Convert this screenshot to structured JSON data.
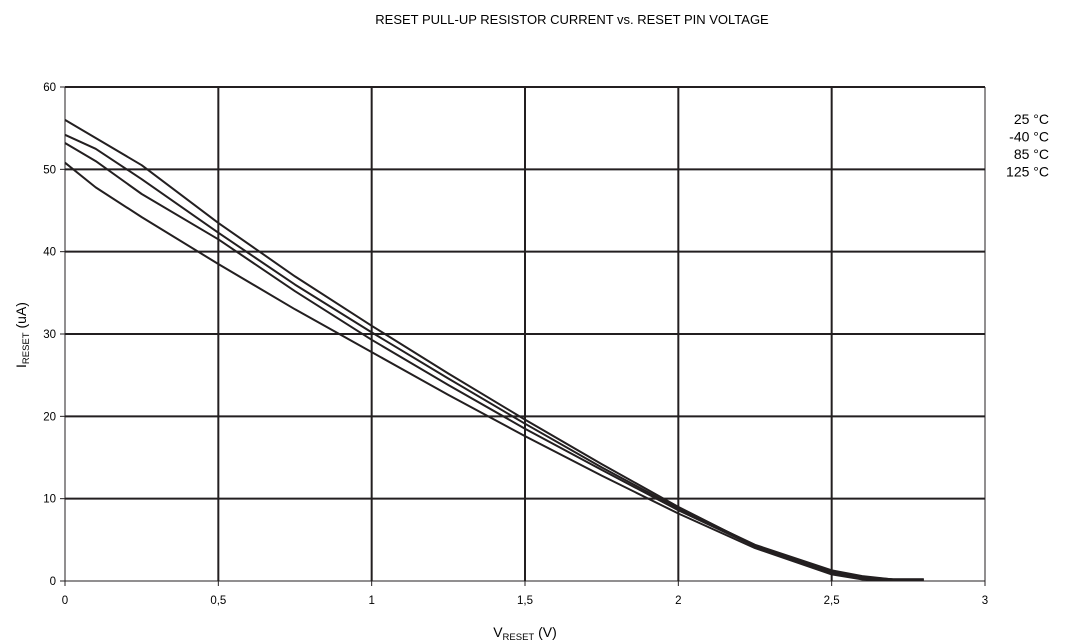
{
  "chart_data": {
    "type": "line",
    "title": "RESET PULL-UP RESISTOR CURRENT vs. RESET PIN VOLTAGE",
    "xlabel": {
      "main": "V",
      "sub": "RESET",
      "unit": " (V)"
    },
    "ylabel": {
      "main": "I",
      "sub": "RESET",
      "unit": " (uA)"
    },
    "xlim": [
      0,
      3
    ],
    "ylim": [
      0,
      60
    ],
    "x_ticks": [
      0,
      0.5,
      1,
      1.5,
      2,
      2.5,
      3
    ],
    "x_tick_labels": [
      "0",
      "0,5",
      "1",
      "1,5",
      "2",
      "2,5",
      "3"
    ],
    "y_ticks": [
      0,
      10,
      20,
      30,
      40,
      50,
      60
    ],
    "y_tick_labels": [
      "0",
      "10",
      "20",
      "30",
      "40",
      "50",
      "60"
    ],
    "grid": true,
    "legend_position": "right",
    "legend": [
      "25 °C",
      "-40 °C",
      "85 °C",
      "125 °C"
    ],
    "series": [
      {
        "name": "25 °C",
        "x": [
          0,
          0.1,
          0.25,
          0.5,
          0.75,
          1.0,
          1.25,
          1.5,
          1.75,
          2.0,
          2.25,
          2.5,
          2.6,
          2.7,
          2.8
        ],
        "y": [
          56.0,
          53.8,
          50.5,
          43.5,
          37.0,
          31.0,
          25.2,
          19.6,
          14.2,
          9.0,
          4.3,
          1.2,
          0.5,
          0.2,
          0.2
        ]
      },
      {
        "name": "-40 °C",
        "x": [
          0,
          0.1,
          0.25,
          0.5,
          0.75,
          1.0,
          1.25,
          1.5,
          1.75,
          2.0,
          2.25,
          2.5,
          2.6,
          2.7,
          2.8
        ],
        "y": [
          54.2,
          52.5,
          48.8,
          42.3,
          36.0,
          30.2,
          24.6,
          19.1,
          13.8,
          8.8,
          4.4,
          1.3,
          0.6,
          0.2,
          0.2
        ]
      },
      {
        "name": "85 °C",
        "x": [
          0,
          0.1,
          0.25,
          0.5,
          0.75,
          1.0,
          1.25,
          1.5,
          1.75,
          2.0,
          2.25,
          2.5,
          2.6,
          2.7,
          2.8
        ],
        "y": [
          53.2,
          51.0,
          47.0,
          41.5,
          35.2,
          29.3,
          23.8,
          18.5,
          13.5,
          8.6,
          4.2,
          1.0,
          0.4,
          0.2,
          0.2
        ]
      },
      {
        "name": "125 °C",
        "x": [
          0,
          0.1,
          0.25,
          0.5,
          0.75,
          1.0,
          1.25,
          1.5,
          1.75,
          2.0,
          2.25,
          2.5,
          2.6,
          2.7,
          2.8
        ],
        "y": [
          50.8,
          47.8,
          44.2,
          38.5,
          33.0,
          27.8,
          22.6,
          17.6,
          12.8,
          8.2,
          4.0,
          0.8,
          0.2,
          0.1,
          0.1
        ]
      }
    ]
  }
}
